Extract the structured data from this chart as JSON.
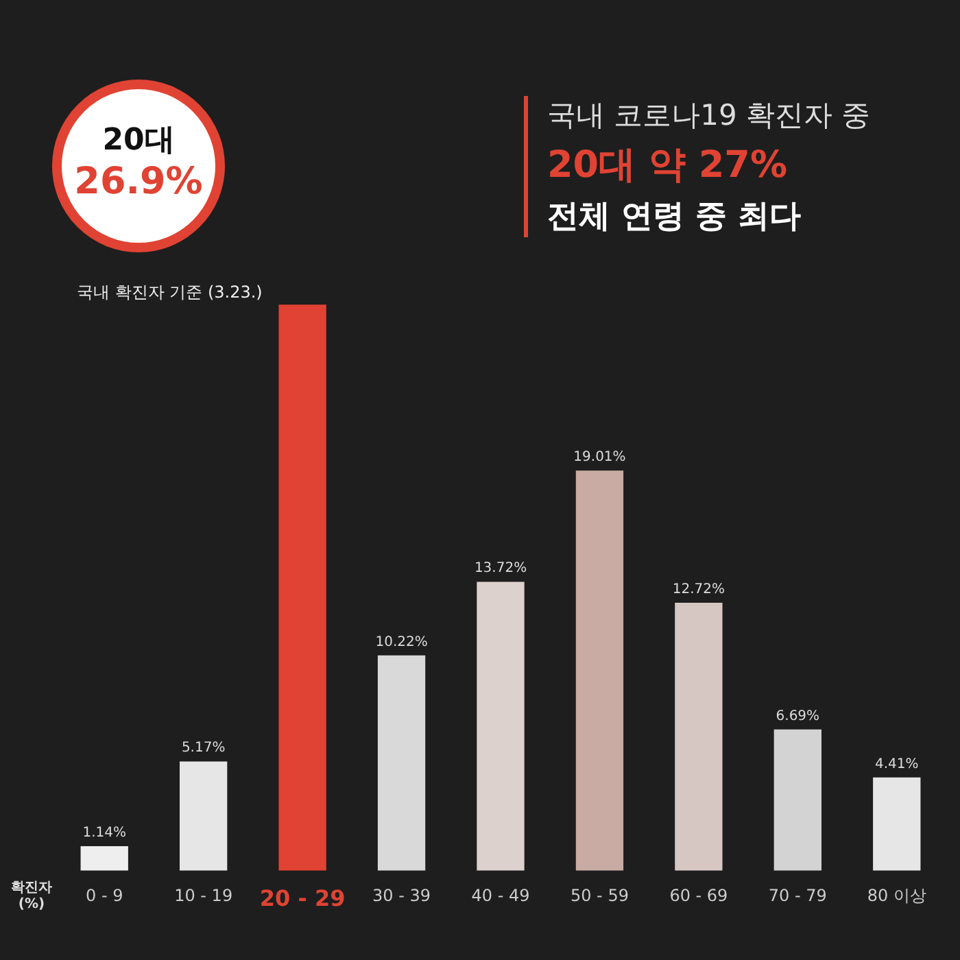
{
  "chart_data": {
    "type": "bar",
    "title": "국내 코로나19 확진자 중",
    "subtitle": "20대 약 27%",
    "ylabel": "확진자\n(%)",
    "categories": [
      "0 - 9",
      "10 - 19",
      "20 - 29",
      "30 - 39",
      "40 - 49",
      "50 - 59",
      "60 - 69",
      "70 - 79",
      "80 이상"
    ],
    "values": [
      1.14,
      5.17,
      26.9,
      10.22,
      13.72,
      19.01,
      12.72,
      6.69,
      4.41
    ],
    "colors": [
      "#eeeeee",
      "#e6e6e6",
      "#e04333",
      "#d9d9d9",
      "#ddd1cd",
      "#c9aba4",
      "#d7c7c3",
      "#d3d3d3",
      "#e6e6e6"
    ],
    "value_labels": [
      "1.14%",
      "5.17%",
      null,
      "10.22%",
      "13.72%",
      "19.01%",
      "12.72%",
      "6.69%",
      "4.41%"
    ],
    "annotations": [
      "전체 연령 중 최다",
      "20대",
      "26.9%",
      "국내 확진자 기준 (3.23.)"
    ],
    "tick_labels": "x",
    "legend": false
  }
}
